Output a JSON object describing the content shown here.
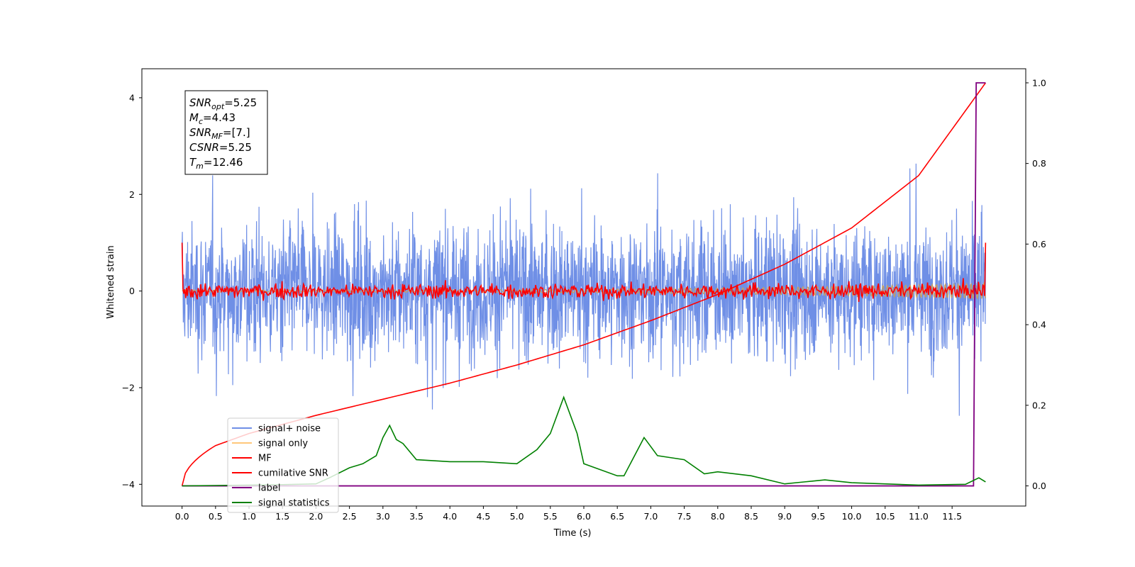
{
  "chart_data": {
    "type": "line",
    "xlabel": "Time (s)",
    "ylabel": "Whitened strain",
    "xlim": [
      -0.6,
      12.6
    ],
    "ylim": [
      -4.45,
      4.6
    ],
    "y2lim": [
      -0.05,
      1.035
    ],
    "xticks": [
      "0.0",
      "0.5",
      "1.0",
      "1.5",
      "2.0",
      "2.5",
      "3.0",
      "3.5",
      "4.0",
      "4.5",
      "5.0",
      "5.5",
      "6.0",
      "6.5",
      "7.0",
      "7.5",
      "8.0",
      "8.5",
      "9.0",
      "9.5",
      "10.0",
      "10.5",
      "11.0",
      "11.5"
    ],
    "xtick_values": [
      0,
      0.5,
      1,
      1.5,
      2,
      2.5,
      3,
      3.5,
      4,
      4.5,
      5,
      5.5,
      6,
      6.5,
      7,
      7.5,
      8,
      8.5,
      9,
      9.5,
      10,
      10.5,
      11,
      11.5
    ],
    "yticks": [
      "4",
      "2",
      "0",
      "−2",
      "−4"
    ],
    "ytick_values": [
      4,
      2,
      0,
      -2,
      -4
    ],
    "y2ticks": [
      "1.0",
      "0.8",
      "0.6",
      "0.4",
      "0.2",
      "0.0"
    ],
    "y2tick_values": [
      1.0,
      0.8,
      0.6,
      0.4,
      0.2,
      0.0
    ],
    "grid": false,
    "legend_position": "lower-left",
    "colors": {
      "signal_noise": "#6f8fe6",
      "signal_only": "#ffc77a",
      "mf": "#ff0000",
      "cumulative_snr": "#ff0000",
      "label": "#800080",
      "signal_statistics": "#008000"
    },
    "series": [
      {
        "name": "signal+ noise",
        "type": "noise",
        "amplitude": 2.5,
        "peak": 4.2
      },
      {
        "name": "signal only",
        "type": "chirp",
        "amplitude_range": [
          0.02,
          0.16
        ]
      },
      {
        "name": "MF",
        "type": "noise",
        "amplitude": 0.35,
        "endpoints": 1.0
      },
      {
        "name": "cumilative SNR",
        "axis": "right",
        "x": [
          0,
          0.5,
          1,
          2,
          3,
          4,
          5,
          6,
          7,
          8,
          9,
          10,
          11,
          12
        ],
        "values": [
          0,
          0.1,
          0.13,
          0.175,
          0.215,
          0.255,
          0.3,
          0.35,
          0.41,
          0.475,
          0.55,
          0.64,
          0.77,
          1.0
        ]
      },
      {
        "name": "label",
        "axis": "right",
        "x": [
          0,
          11.82,
          11.86,
          12.0
        ],
        "values": [
          0,
          0,
          1.0,
          1.0
        ]
      },
      {
        "name": "signal statistics",
        "axis": "right",
        "x": [
          0,
          0.5,
          1,
          1.5,
          2,
          2.2,
          2.5,
          2.7,
          2.9,
          3.0,
          3.1,
          3.2,
          3.3,
          3.5,
          4.0,
          4.5,
          5.0,
          5.3,
          5.5,
          5.7,
          5.9,
          6.0,
          6.5,
          6.6,
          6.9,
          7.1,
          7.3,
          7.5,
          7.8,
          8.0,
          8.5,
          9.0,
          9.3,
          9.6,
          10.0,
          11.0,
          11.7,
          11.9,
          12.0
        ],
        "values": [
          0,
          0.001,
          0.002,
          0.003,
          0.005,
          0.02,
          0.045,
          0.055,
          0.075,
          0.12,
          0.15,
          0.115,
          0.105,
          0.065,
          0.06,
          0.06,
          0.055,
          0.09,
          0.13,
          0.22,
          0.13,
          0.055,
          0.025,
          0.025,
          0.12,
          0.075,
          0.07,
          0.065,
          0.03,
          0.035,
          0.025,
          0.005,
          0.01,
          0.015,
          0.008,
          0.002,
          0.004,
          0.02,
          0.01
        ]
      }
    ],
    "legend": [
      "signal+ noise",
      "signal only",
      "MF",
      "cumilative SNR",
      "label",
      "signal statistics"
    ],
    "annotation": {
      "lines": [
        {
          "base": "SNR",
          "sub": "opt",
          "value": "=5.25"
        },
        {
          "base": "M",
          "sub": "c",
          "value": "=4.43"
        },
        {
          "base": "SNR",
          "sub": "MF",
          "value": "=[7.]"
        },
        {
          "base": "CSNR",
          "sub": "",
          "value": "=5.25"
        },
        {
          "base": "T",
          "sub": "m",
          "value": "=12.46"
        }
      ]
    }
  }
}
